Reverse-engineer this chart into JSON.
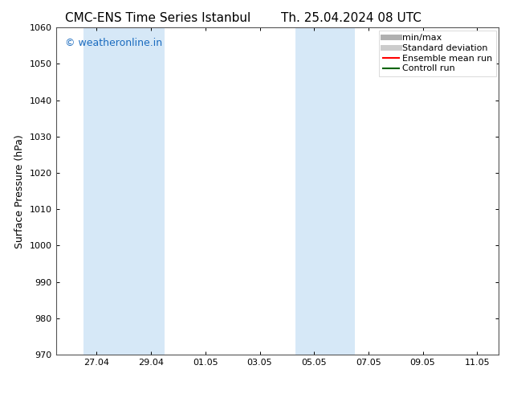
{
  "title_left": "CMC-ENS Time Series Istanbul",
  "title_right": "Th. 25.04.2024 08 UTC",
  "ylabel": "Surface Pressure (hPa)",
  "ylim": [
    970,
    1060
  ],
  "yticks": [
    970,
    980,
    990,
    1000,
    1010,
    1020,
    1030,
    1040,
    1050,
    1060
  ],
  "xtick_labels": [
    "27.04",
    "29.04",
    "01.05",
    "03.05",
    "05.05",
    "07.05",
    "09.05",
    "11.05"
  ],
  "xtick_positions": [
    2.0,
    4.0,
    6.0,
    8.0,
    10.0,
    12.0,
    14.0,
    16.0
  ],
  "xlim": [
    0.5,
    16.8
  ],
  "shade_bands": [
    {
      "x_start": 1.5,
      "x_end": 4.5
    },
    {
      "x_start": 9.3,
      "x_end": 11.5
    }
  ],
  "shade_color": "#d6e8f7",
  "watermark": "© weatheronline.in",
  "watermark_color": "#1a6bbf",
  "bg_color": "#ffffff",
  "plot_bg_color": "#ffffff",
  "legend_items": [
    {
      "label": "min/max",
      "color": "#b0b0b0",
      "lw": 5
    },
    {
      "label": "Standard deviation",
      "color": "#cccccc",
      "lw": 5
    },
    {
      "label": "Ensemble mean run",
      "color": "#ff0000",
      "lw": 1.5
    },
    {
      "label": "Controll run",
      "color": "#006400",
      "lw": 1.5
    }
  ],
  "title_fontsize": 11,
  "ylabel_fontsize": 9,
  "tick_fontsize": 8,
  "watermark_fontsize": 9,
  "legend_fontsize": 8
}
